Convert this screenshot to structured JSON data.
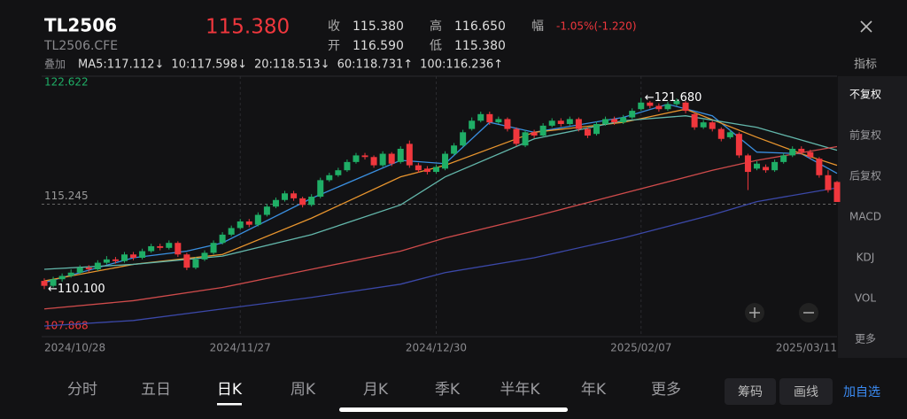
{
  "header": {
    "symbol": "TL2506",
    "code": "TL2506.CFE",
    "price": "115.380",
    "stats": [
      {
        "label": "收",
        "value": "115.380"
      },
      {
        "label": "高",
        "value": "116.650"
      },
      {
        "label": "幅",
        "value": "-1.05%(-1.220)"
      },
      {
        "label": "开",
        "value": "116.590"
      },
      {
        "label": "低",
        "value": "115.380"
      }
    ],
    "overlay_label": "叠加",
    "indicator_label": "指标"
  },
  "chart_data": {
    "type": "candlestick",
    "categories": [
      "2024/10/28",
      null,
      null,
      null,
      null,
      null,
      null,
      null,
      null,
      null,
      null,
      null,
      null,
      null,
      null,
      null,
      null,
      null,
      null,
      null,
      null,
      null,
      "2024/11/27",
      null,
      null,
      null,
      null,
      null,
      null,
      null,
      null,
      null,
      null,
      null,
      null,
      null,
      null,
      null,
      null,
      null,
      null,
      null,
      null,
      null,
      "2024/12/30",
      null,
      null,
      null,
      null,
      null,
      null,
      null,
      null,
      null,
      null,
      null,
      null,
      null,
      null,
      null,
      null,
      null,
      null,
      null,
      null,
      null,
      null,
      "2025/02/07",
      null,
      null,
      null,
      null,
      null,
      null,
      null,
      null,
      null,
      null,
      null,
      null,
      null,
      null,
      null,
      null,
      null,
      null,
      null,
      null,
      null,
      "2025/03/11"
    ],
    "open": [
      110.6,
      110.3,
      110.7,
      110.9,
      111.1,
      111.4,
      111.3,
      111.7,
      111.9,
      111.8,
      112.2,
      112.0,
      112.4,
      112.7,
      112.6,
      112.9,
      112.2,
      111.4,
      111.9,
      112.3,
      112.9,
      113.4,
      113.8,
      114.2,
      114.0,
      114.6,
      115.1,
      115.5,
      115.9,
      115.6,
      115.2,
      115.7,
      116.7,
      117.0,
      117.3,
      117.8,
      118.2,
      118.1,
      117.6,
      118.3,
      117.8,
      118.9,
      117.6,
      117.4,
      117.2,
      117.4,
      118.3,
      118.8,
      119.8,
      120.3,
      120.7,
      120.2,
      120.4,
      119.8,
      118.8,
      119.6,
      119.4,
      120.0,
      120.3,
      120.1,
      120.4,
      119.8,
      119.5,
      120.1,
      120.4,
      120.2,
      120.5,
      121.0,
      121.4,
      121.2,
      121.0,
      121.3,
      121.4,
      120.7,
      119.9,
      120.2,
      119.8,
      119.3,
      119.5,
      118.2,
      117.4,
      117.5,
      117.3,
      117.8,
      118.2,
      118.6,
      118.4,
      118.0,
      117.0,
      116.59
    ],
    "high": [
      110.75,
      110.85,
      111.05,
      111.3,
      111.55,
      111.55,
      111.85,
      112.1,
      112.05,
      112.35,
      112.35,
      112.55,
      112.85,
      112.85,
      113.05,
      113.0,
      112.3,
      112.05,
      112.45,
      113.05,
      113.55,
      113.95,
      114.35,
      114.35,
      114.75,
      115.25,
      115.65,
      116.05,
      116.05,
      115.7,
      115.85,
      116.85,
      117.15,
      117.45,
      117.95,
      118.35,
      118.35,
      118.2,
      118.45,
      118.4,
      118.75,
      119.1,
      117.75,
      117.55,
      117.65,
      118.45,
      118.95,
      119.75,
      120.5,
      120.85,
      120.85,
      120.55,
      120.5,
      119.9,
      119.75,
      119.75,
      120.15,
      120.45,
      120.45,
      120.55,
      120.5,
      119.9,
      120.25,
      120.55,
      120.55,
      120.65,
      121.05,
      121.68,
      121.5,
      121.35,
      121.45,
      121.65,
      121.5,
      120.8,
      120.35,
      120.3,
      119.9,
      119.75,
      119.6,
      118.3,
      117.85,
      117.65,
      117.95,
      118.35,
      118.75,
      118.75,
      118.55,
      118.1,
      117.3,
      116.65
    ],
    "low": [
      110.1,
      110.2,
      110.55,
      110.8,
      111.0,
      111.15,
      111.2,
      111.6,
      111.65,
      111.7,
      111.85,
      111.9,
      112.3,
      112.45,
      112.5,
      112.05,
      111.25,
      111.3,
      111.8,
      112.2,
      112.8,
      113.3,
      113.7,
      113.85,
      113.9,
      114.5,
      115.0,
      115.4,
      115.45,
      115.05,
      115.1,
      115.6,
      116.6,
      116.9,
      117.2,
      117.7,
      117.95,
      117.45,
      117.5,
      117.55,
      117.7,
      117.45,
      117.15,
      117.05,
      117.1,
      117.3,
      118.2,
      118.7,
      119.7,
      120.2,
      120.05,
      120.1,
      119.65,
      118.75,
      118.7,
      119.25,
      119.3,
      119.9,
      119.95,
      120.0,
      119.65,
      119.25,
      119.4,
      120.0,
      120.05,
      120.1,
      120.4,
      120.9,
      121.05,
      120.85,
      120.9,
      121.2,
      120.75,
      119.75,
      119.8,
      119.65,
      119.05,
      119.2,
      118.05,
      116.1,
      117.3,
      117.15,
      117.2,
      117.7,
      118.1,
      118.25,
      117.95,
      116.85,
      115.95,
      115.38
    ],
    "close": [
      110.3,
      110.7,
      110.9,
      111.1,
      111.4,
      111.3,
      111.7,
      111.9,
      111.8,
      112.2,
      112.0,
      112.4,
      112.7,
      112.6,
      112.9,
      112.2,
      111.4,
      111.9,
      112.3,
      112.9,
      113.4,
      113.8,
      114.2,
      114.0,
      114.6,
      115.1,
      115.5,
      115.9,
      115.6,
      115.2,
      115.7,
      116.7,
      117.0,
      117.3,
      117.8,
      118.2,
      118.1,
      117.6,
      118.3,
      117.7,
      118.6,
      117.6,
      117.3,
      117.2,
      117.5,
      118.3,
      118.8,
      119.6,
      120.3,
      120.7,
      120.2,
      120.4,
      119.8,
      118.9,
      119.6,
      119.4,
      120.0,
      120.3,
      120.1,
      120.4,
      119.8,
      119.4,
      120.1,
      120.4,
      120.2,
      120.5,
      120.9,
      121.4,
      121.2,
      121.0,
      121.3,
      121.5,
      120.9,
      119.9,
      120.2,
      119.8,
      119.2,
      119.6,
      118.2,
      117.2,
      117.7,
      117.3,
      117.8,
      118.2,
      118.6,
      118.4,
      118.1,
      117.0,
      116.1,
      115.38
    ],
    "up_color": "#1fae66",
    "down_color": "#f0373d",
    "ylim": [
      107.868,
      122.622
    ],
    "reference_line": 115.245,
    "ma_series": [
      {
        "label": "MA5:117.112↓",
        "color": "#3a8fe0",
        "x": [
          0,
          10,
          16,
          20,
          30,
          40,
          45,
          50,
          55,
          65,
          70,
          75,
          80,
          85,
          89
        ],
        "values": [
          110.5,
          112.0,
          112.4,
          112.9,
          115.6,
          117.9,
          117.7,
          120.2,
          119.6,
          120.5,
          121.3,
          120.6,
          118.4,
          118.3,
          117.11
        ]
      },
      {
        "label": "10:117.598↓",
        "color": "#e8952e",
        "x": [
          0,
          10,
          20,
          30,
          40,
          45,
          55,
          65,
          72,
          80,
          85,
          89
        ],
        "values": [
          110.6,
          111.6,
          112.2,
          114.4,
          116.9,
          117.6,
          119.6,
          120.2,
          121.0,
          119.3,
          118.3,
          117.6
        ]
      },
      {
        "label": "20:118.513↓",
        "color": "#63b7ab",
        "x": [
          0,
          10,
          20,
          30,
          40,
          45,
          55,
          65,
          72,
          80,
          89
        ],
        "values": [
          111.3,
          111.6,
          112.1,
          113.4,
          115.2,
          116.9,
          119.2,
          120.3,
          120.6,
          119.9,
          118.51
        ]
      },
      {
        "label": "60:118.731↑",
        "color": "#cf4b4b",
        "x": [
          0,
          10,
          20,
          30,
          40,
          45,
          55,
          65,
          75,
          80,
          89
        ],
        "values": [
          108.9,
          109.4,
          110.2,
          111.3,
          112.4,
          113.2,
          114.5,
          115.9,
          117.3,
          117.9,
          118.73
        ]
      },
      {
        "label": "100:116.236↑",
        "color": "#3b48a8",
        "x": [
          0,
          10,
          20,
          30,
          40,
          45,
          55,
          65,
          75,
          80,
          89
        ],
        "values": [
          107.87,
          108.2,
          108.9,
          109.6,
          110.4,
          111.1,
          112.0,
          113.2,
          114.6,
          115.4,
          116.24
        ]
      }
    ],
    "annotations": [
      {
        "text": "←121.680",
        "value": 121.68
      },
      {
        "text": "←110.100",
        "value": 110.1
      }
    ]
  },
  "side_panel": [
    {
      "text": "不复权",
      "selected": true
    },
    {
      "text": "前复权"
    },
    {
      "text": "后复权"
    },
    {
      "text": "MACD"
    },
    {
      "text": "KDJ"
    },
    {
      "text": "VOL"
    },
    {
      "text": "更多"
    }
  ],
  "tabs": [
    {
      "text": "分时"
    },
    {
      "text": "五日"
    },
    {
      "text": "日K",
      "selected": true
    },
    {
      "text": "周K"
    },
    {
      "text": "月K"
    },
    {
      "text": "季K"
    },
    {
      "text": "半年K"
    },
    {
      "text": "年K"
    },
    {
      "text": "更多"
    }
  ],
  "buttons": [
    "筹码",
    "画线",
    "加自选"
  ]
}
